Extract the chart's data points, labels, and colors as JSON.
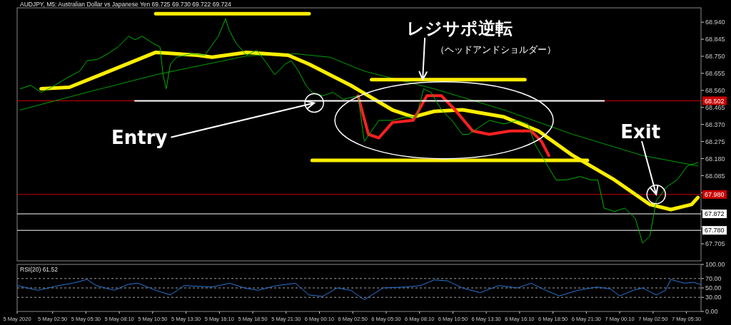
{
  "chart_data": [
    {
      "type": "line",
      "title": "AUDJPY, M5:  Australian Dollar vs Japanese Yen  69.725 69.730 69.722 69.724",
      "xlim": [
        "2020-05-05T00:00",
        "2020-05-07T06:40"
      ],
      "ylim": [
        67.61,
        69.02
      ],
      "tick_labels": "y",
      "grid": false,
      "marker": "none",
      "yticks": [
        {
          "value": 67.705,
          "label": "67.705"
        },
        {
          "value": 67.8,
          "label": null
        },
        {
          "value": 67.895,
          "label": null
        },
        {
          "value": 67.99,
          "label": null
        },
        {
          "value": 68.085,
          "label": "68.085"
        },
        {
          "value": 68.18,
          "label": "68.180"
        },
        {
          "value": 68.275,
          "label": "68.275"
        },
        {
          "value": 68.37,
          "label": "68.370"
        },
        {
          "value": 68.465,
          "label": "68.465"
        },
        {
          "value": 68.56,
          "label": "68.560"
        },
        {
          "value": 68.655,
          "label": "68.655"
        },
        {
          "value": 68.75,
          "label": "68.750"
        },
        {
          "value": 68.845,
          "label": "68.845"
        },
        {
          "value": 68.94,
          "label": "68.940"
        }
      ],
      "ref_lines": [
        {
          "axis": "y",
          "value": 68.502,
          "label": "68.502",
          "color": "#cc0000"
        },
        {
          "axis": "y",
          "value": 67.98,
          "label": "67.980",
          "color": "#cc0000"
        },
        {
          "axis": "y",
          "value": 67.872,
          "label": "67.872",
          "color": "#ffffff"
        },
        {
          "axis": "y",
          "value": 67.78,
          "label": "67.780",
          "color": "#ffffff"
        }
      ],
      "series": [
        {
          "color": "#00b400",
          "x": [
            "2020-05-05T00:15",
            "2020-05-05T01:05",
            "2020-05-05T01:55",
            "2020-05-05T02:45",
            "2020-05-05T03:55",
            "2020-05-05T05:00",
            "2020-05-05T05:35",
            "2020-05-05T06:25",
            "2020-05-05T07:15",
            "2020-05-05T08:05",
            "2020-05-05T08:55",
            "2020-05-05T09:25",
            "2020-05-05T10:00",
            "2020-05-05T10:50",
            "2020-05-05T11:25",
            "2020-05-05T11:40",
            "2020-05-05T11:55",
            "2020-05-05T12:15",
            "2020-05-05T12:45",
            "2020-05-05T13:55",
            "2020-05-05T15:00",
            "2020-05-05T16:05",
            "2020-05-05T16:40",
            "2020-05-05T16:55",
            "2020-05-05T17:30",
            "2020-05-05T18:20",
            "2020-05-05T19:10",
            "2020-05-05T20:00",
            "2020-05-05T20:35",
            "2020-05-05T21:25",
            "2020-05-05T21:55",
            "2020-05-05T22:30",
            "2020-05-05T23:05",
            "2020-05-05T23:35",
            "2020-05-06T00:25",
            "2020-05-06T01:15",
            "2020-05-06T02:05",
            "2020-05-06T03:15",
            "2020-05-06T03:45",
            "2020-05-06T04:20",
            "2020-05-06T04:55",
            "2020-05-06T06:00",
            "2020-05-06T07:05",
            "2020-05-06T07:55",
            "2020-05-06T08:30",
            "2020-05-06T09:05",
            "2020-05-06T09:55",
            "2020-05-06T10:45",
            "2020-05-06T11:35",
            "2020-05-06T12:05",
            "2020-05-06T12:55",
            "2020-05-06T13:45",
            "2020-05-06T14:55",
            "2020-05-06T16:00",
            "2020-05-06T16:50",
            "2020-05-06T17:25",
            "2020-05-06T18:15",
            "2020-05-06T19:05",
            "2020-05-06T19:55",
            "2020-05-06T21:00",
            "2020-05-06T21:50",
            "2020-05-06T22:25",
            "2020-05-06T22:55",
            "2020-05-06T23:45",
            "2020-05-07T00:35",
            "2020-05-07T01:25",
            "2020-05-07T02:00",
            "2020-05-07T02:35",
            "2020-05-07T03:05",
            "2020-05-07T03:55",
            "2020-05-07T04:45",
            "2020-05-07T05:35",
            "2020-05-07T06:25"
          ],
          "values": [
            68.569,
            68.588,
            68.549,
            68.577,
            68.627,
            68.667,
            68.725,
            68.733,
            68.764,
            68.803,
            68.862,
            68.842,
            68.862,
            68.823,
            68.803,
            68.647,
            68.569,
            68.706,
            68.745,
            68.764,
            68.756,
            68.862,
            68.96,
            68.901,
            68.823,
            68.756,
            68.784,
            68.706,
            68.647,
            68.706,
            68.725,
            68.667,
            68.588,
            68.549,
            68.53,
            68.549,
            68.51,
            68.53,
            68.276,
            68.334,
            68.393,
            68.393,
            68.412,
            68.412,
            68.569,
            68.549,
            68.452,
            68.393,
            68.315,
            68.315,
            68.354,
            68.393,
            68.373,
            68.393,
            68.373,
            68.256,
            68.158,
            68.061,
            68.061,
            68.08,
            68.061,
            68.061,
            67.904,
            67.885,
            67.904,
            67.846,
            67.709,
            67.748,
            67.944,
            68.022,
            68.061,
            68.139,
            68.158
          ]
        },
        {
          "color": "#00a000",
          "x": [
            "2020-05-05T00:15",
            "2020-05-05T05:35",
            "2020-05-05T11:05",
            "2020-05-05T18:20",
            "2020-05-05T22:15",
            "2020-05-06T01:00",
            "2020-05-06T03:45",
            "2020-05-06T09:20",
            "2020-05-06T14:55",
            "2020-05-06T20:25",
            "2020-05-07T02:00",
            "2020-05-07T06:25"
          ],
          "values": [
            68.451,
            68.549,
            68.647,
            68.752,
            68.764,
            68.745,
            68.667,
            68.569,
            68.451,
            68.315,
            68.197,
            68.139
          ]
        },
        {
          "color": "#ffee00",
          "x": [
            "2020-05-05T01:55",
            "2020-05-05T04:10",
            "2020-05-05T06:40",
            "2020-05-05T11:05",
            "2020-05-05T14:25",
            "2020-05-05T15:35",
            "2020-05-05T18:20",
            "2020-05-05T21:40",
            "2020-05-05T23:20",
            "2020-05-06T02:40",
            "2020-05-06T06:00",
            "2020-05-06T07:40",
            "2020-05-06T09:20",
            "2020-05-06T11:35",
            "2020-05-06T14:55",
            "2020-05-06T17:40",
            "2020-05-06T20:25",
            "2020-05-06T23:45",
            "2020-05-07T02:35",
            "2020-05-07T04:15",
            "2020-05-07T05:55",
            "2020-05-07T06:25"
          ],
          "values": [
            68.569,
            68.577,
            68.647,
            68.772,
            68.756,
            68.745,
            68.772,
            68.756,
            68.706,
            68.588,
            68.451,
            68.412,
            68.443,
            68.452,
            68.412,
            68.334,
            68.197,
            68.061,
            67.924,
            67.896,
            67.924,
            67.963
          ]
        },
        {
          "color": "#ff2020",
          "x": [
            "2020-05-06T03:15",
            "2020-05-06T04:05",
            "2020-05-06T04:55",
            "2020-05-06T06:00",
            "2020-05-06T07:40",
            "2020-05-06T08:45",
            "2020-05-06T09:55",
            "2020-05-06T11:00",
            "2020-05-06T12:25",
            "2020-05-06T13:45",
            "2020-05-06T15:25",
            "2020-05-06T17:05",
            "2020-05-06T17:55",
            "2020-05-06T18:30"
          ],
          "values": [
            68.53,
            68.315,
            68.295,
            68.381,
            68.393,
            68.53,
            68.53,
            68.452,
            68.334,
            68.315,
            68.334,
            68.334,
            68.276,
            68.197
          ]
        },
        {
          "color": "#ffee00",
          "x": [
            "2020-05-05T11:05",
            "2020-05-05T23:20"
          ],
          "values": [
            68.987,
            68.987
          ]
        },
        {
          "color": "#ffee00",
          "x": [
            "2020-05-06T04:20",
            "2020-05-06T16:35"
          ],
          "values": [
            68.62,
            68.62
          ]
        },
        {
          "color": "#ffee00",
          "x": [
            "2020-05-05T23:35",
            "2020-05-06T21:35"
          ],
          "values": [
            68.17,
            68.17
          ]
        },
        {
          "color": "#ffffff",
          "x": [
            "2020-05-05T09:25",
            "2020-05-06T22:55"
          ],
          "values": [
            68.502,
            68.502
          ]
        }
      ],
      "annotations": [
        {
          "text": "Entry",
          "x": "2020-05-05T23:45",
          "y": 68.49
        },
        {
          "text": "Exit",
          "x": "2020-05-07T03:05",
          "y": 67.98
        },
        {
          "text": "レジサポ逆転",
          "x": "2020-05-06T08:25",
          "y": 68.62
        },
        "（ヘッドアンドショルダー）"
      ]
    },
    {
      "type": "line",
      "title": "RSI(20) 61.52",
      "xlim": [
        "2020-05-05T00:00",
        "2020-05-07T06:40"
      ],
      "ylim": [
        0,
        100
      ],
      "grid": false,
      "marker": "none",
      "yticks": [
        {
          "value": 0,
          "label": "0.00"
        },
        {
          "value": 30,
          "label": "30.00"
        },
        {
          "value": 50,
          "label": "50.00"
        },
        {
          "value": 70,
          "label": "70.00"
        },
        {
          "value": 100,
          "label": "100.00"
        }
      ],
      "xticks": [
        {
          "value": "2020-05-05",
          "label": "5 May 2020"
        },
        {
          "value": "2020-05-05T02:50",
          "label": "5 May 02:50"
        },
        {
          "value": "2020-05-05T05:30",
          "label": "5 May 05:30"
        },
        {
          "value": "2020-05-05T08:10",
          "label": "5 May 08:10"
        },
        {
          "value": "2020-05-05T10:50",
          "label": "5 May 10:50"
        },
        {
          "value": "2020-05-05T13:30",
          "label": "5 May 13:30"
        },
        {
          "value": "2020-05-05T16:10",
          "label": "5 May 16:10"
        },
        {
          "value": "2020-05-05T18:50",
          "label": "5 May 18:50"
        },
        {
          "value": "2020-05-05T21:30",
          "label": "5 May 21:30"
        },
        {
          "value": "2020-05-06T00:10",
          "label": "6 May 00:10"
        },
        {
          "value": "2020-05-06T02:50",
          "label": "6 May 02:50"
        },
        {
          "value": "2020-05-06T05:30",
          "label": "6 May 05:30"
        },
        {
          "value": "2020-05-06T08:10",
          "label": "6 May 08:10"
        },
        {
          "value": "2020-05-06T10:50",
          "label": "6 May 10:50"
        },
        {
          "value": "2020-05-06T13:30",
          "label": "6 May 13:30"
        },
        {
          "value": "2020-05-06T16:10",
          "label": "6 May 16:10"
        },
        {
          "value": "2020-05-06T18:50",
          "label": "6 May 18:50"
        },
        {
          "value": "2020-05-06T21:30",
          "label": "6 May 21:30"
        },
        {
          "value": "2020-05-07T00:10",
          "label": "7 May 00:10"
        },
        {
          "value": "2020-05-07T02:50",
          "label": "7 May 02:50"
        },
        {
          "value": "2020-05-07T05:30",
          "label": "7 May 05:30"
        }
      ],
      "ref_lines": [
        {
          "axis": "y",
          "value": 30,
          "color": "#a0a0a0",
          "line_style": "dashed"
        },
        {
          "axis": "y",
          "value": 50,
          "color": "#a0a0a0",
          "line_style": "dashed"
        },
        {
          "axis": "y",
          "value": 70,
          "color": "#a0a0a0",
          "line_style": "dashed"
        }
      ],
      "series": [
        {
          "color": "#2a78d6",
          "x": [
            "2020-05-05T00:00",
            "2020-05-05T01:40",
            "2020-05-05T03:20",
            "2020-05-05T04:25",
            "2020-05-05T05:35",
            "2020-05-05T06:20",
            "2020-05-05T07:45",
            "2020-05-05T08:55",
            "2020-05-05T09:40",
            "2020-05-05T11:05",
            "2020-05-05T12:15",
            "2020-05-05T13:20",
            "2020-05-05T15:35",
            "2020-05-05T17:00",
            "2020-05-05T18:10",
            "2020-05-05T19:15",
            "2020-05-05T20:45",
            "2020-05-05T22:15",
            "2020-05-05T23:20",
            "2020-05-06T00:25",
            "2020-05-06T01:35",
            "2020-05-06T02:40",
            "2020-05-06T03:45",
            "2020-05-06T05:15",
            "2020-05-06T07:05",
            "2020-05-06T08:15",
            "2020-05-06T09:20",
            "2020-05-06T10:25",
            "2020-05-06T11:35",
            "2020-05-06T13:00",
            "2020-05-06T14:30",
            "2020-05-06T16:00",
            "2020-05-06T17:05",
            "2020-05-06T18:15",
            "2020-05-06T19:20",
            "2020-05-06T20:50",
            "2020-05-06T22:20",
            "2020-05-06T23:25",
            "2020-05-07T00:10",
            "2020-05-07T01:15",
            "2020-05-07T02:00",
            "2020-05-07T03:05",
            "2020-05-07T03:50",
            "2020-05-07T04:15",
            "2020-05-07T05:20",
            "2020-05-07T06:05",
            "2020-05-07T06:40"
          ],
          "values": [
            55,
            45,
            55,
            60,
            68,
            55,
            45,
            58,
            60,
            45,
            35,
            55,
            52,
            60,
            50,
            45,
            55,
            60,
            35,
            32,
            50,
            45,
            25,
            50,
            52,
            55,
            67,
            65,
            50,
            40,
            55,
            50,
            60,
            45,
            33,
            45,
            52,
            48,
            33,
            45,
            50,
            35,
            45,
            68,
            60,
            62,
            57
          ]
        }
      ]
    }
  ]
}
